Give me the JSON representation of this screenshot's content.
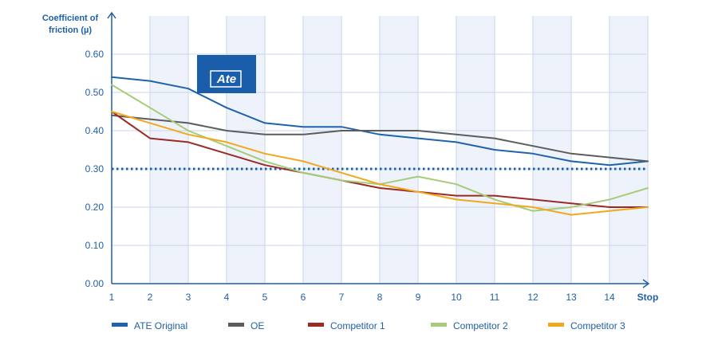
{
  "chart_data": {
    "type": "line",
    "ylabel_line1": "Coefficient of",
    "ylabel_line2": "friction (µ)",
    "xlabel": "Stop",
    "x": [
      1,
      2,
      3,
      4,
      5,
      6,
      7,
      8,
      9,
      10,
      11,
      12,
      13,
      14,
      15
    ],
    "x_tick_labels": [
      "1",
      "2",
      "3",
      "4",
      "5",
      "6",
      "7",
      "8",
      "9",
      "10",
      "11",
      "12",
      "13",
      "14",
      "Stop"
    ],
    "y_ticks": [
      "0.00",
      "0.10",
      "0.20",
      "0.30",
      "0.40",
      "0.50",
      "0.60"
    ],
    "ylim": [
      0,
      0.6
    ],
    "reference_line": {
      "value": 0.3,
      "style": "dotted",
      "color": "#1f5fa8"
    },
    "grid": true,
    "legend_position": "bottom",
    "logo_text": "Ate",
    "series": [
      {
        "name": "ATE Original",
        "color": "#1f63ad",
        "values": [
          0.54,
          0.53,
          0.51,
          0.46,
          0.42,
          0.41,
          0.41,
          0.39,
          0.38,
          0.37,
          0.35,
          0.34,
          0.32,
          0.31,
          0.32
        ]
      },
      {
        "name": "OE",
        "color": "#5c5c5c",
        "values": [
          0.44,
          0.43,
          0.42,
          0.4,
          0.39,
          0.39,
          0.4,
          0.4,
          0.4,
          0.39,
          0.38,
          0.36,
          0.34,
          0.33,
          0.32
        ]
      },
      {
        "name": "Competitor 1",
        "color": "#9b2a24",
        "values": [
          0.45,
          0.38,
          0.37,
          0.34,
          0.31,
          0.29,
          0.27,
          0.25,
          0.24,
          0.23,
          0.23,
          0.22,
          0.21,
          0.2,
          0.2
        ]
      },
      {
        "name": "Competitor 2",
        "color": "#a6cc78",
        "values": [
          0.52,
          0.46,
          0.4,
          0.36,
          0.32,
          0.29,
          0.27,
          0.26,
          0.28,
          0.26,
          0.22,
          0.19,
          0.2,
          0.22,
          0.25
        ]
      },
      {
        "name": "Competitor 3",
        "color": "#f2a81d",
        "values": [
          0.45,
          0.42,
          0.39,
          0.37,
          0.34,
          0.32,
          0.29,
          0.26,
          0.24,
          0.22,
          0.21,
          0.2,
          0.18,
          0.19,
          0.2
        ]
      }
    ]
  }
}
